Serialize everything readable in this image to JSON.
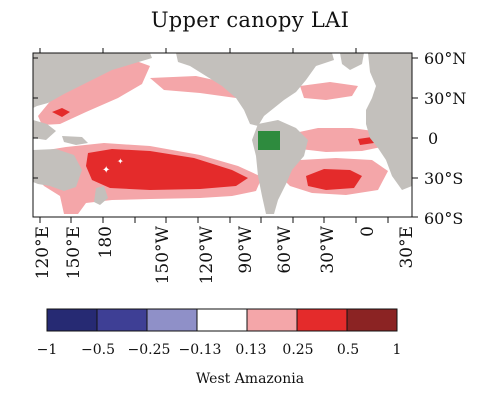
{
  "title": "Upper canopy LAI",
  "map": {
    "lat_labels": [
      "60°N",
      "30°N",
      "0",
      "30°S",
      "60°S"
    ],
    "lon_labels": [
      "120°E",
      "150°E",
      "180",
      "150°W",
      "120°W",
      "90°W",
      "60°W",
      "30°W",
      "0",
      "30°E"
    ],
    "marker_icon": "green-square-icon",
    "colors": {
      "land": "#c3c0bc",
      "anomaly_low": "#f4a6a9",
      "anomaly_mid": "#e42b2b",
      "region_marker": "#2e8b3e"
    }
  },
  "colorbar": {
    "tick_labels": [
      "−1",
      "−0.5",
      "−0.25",
      "−0.13",
      "0.13",
      "0.25",
      "0.5",
      "1"
    ],
    "bin_colors": [
      "#262a73",
      "#3e3f95",
      "#8f90c8",
      "#ffffff",
      "#f4a6a9",
      "#e42b2b",
      "#8b2323"
    ],
    "caption": "West Amazonia"
  }
}
